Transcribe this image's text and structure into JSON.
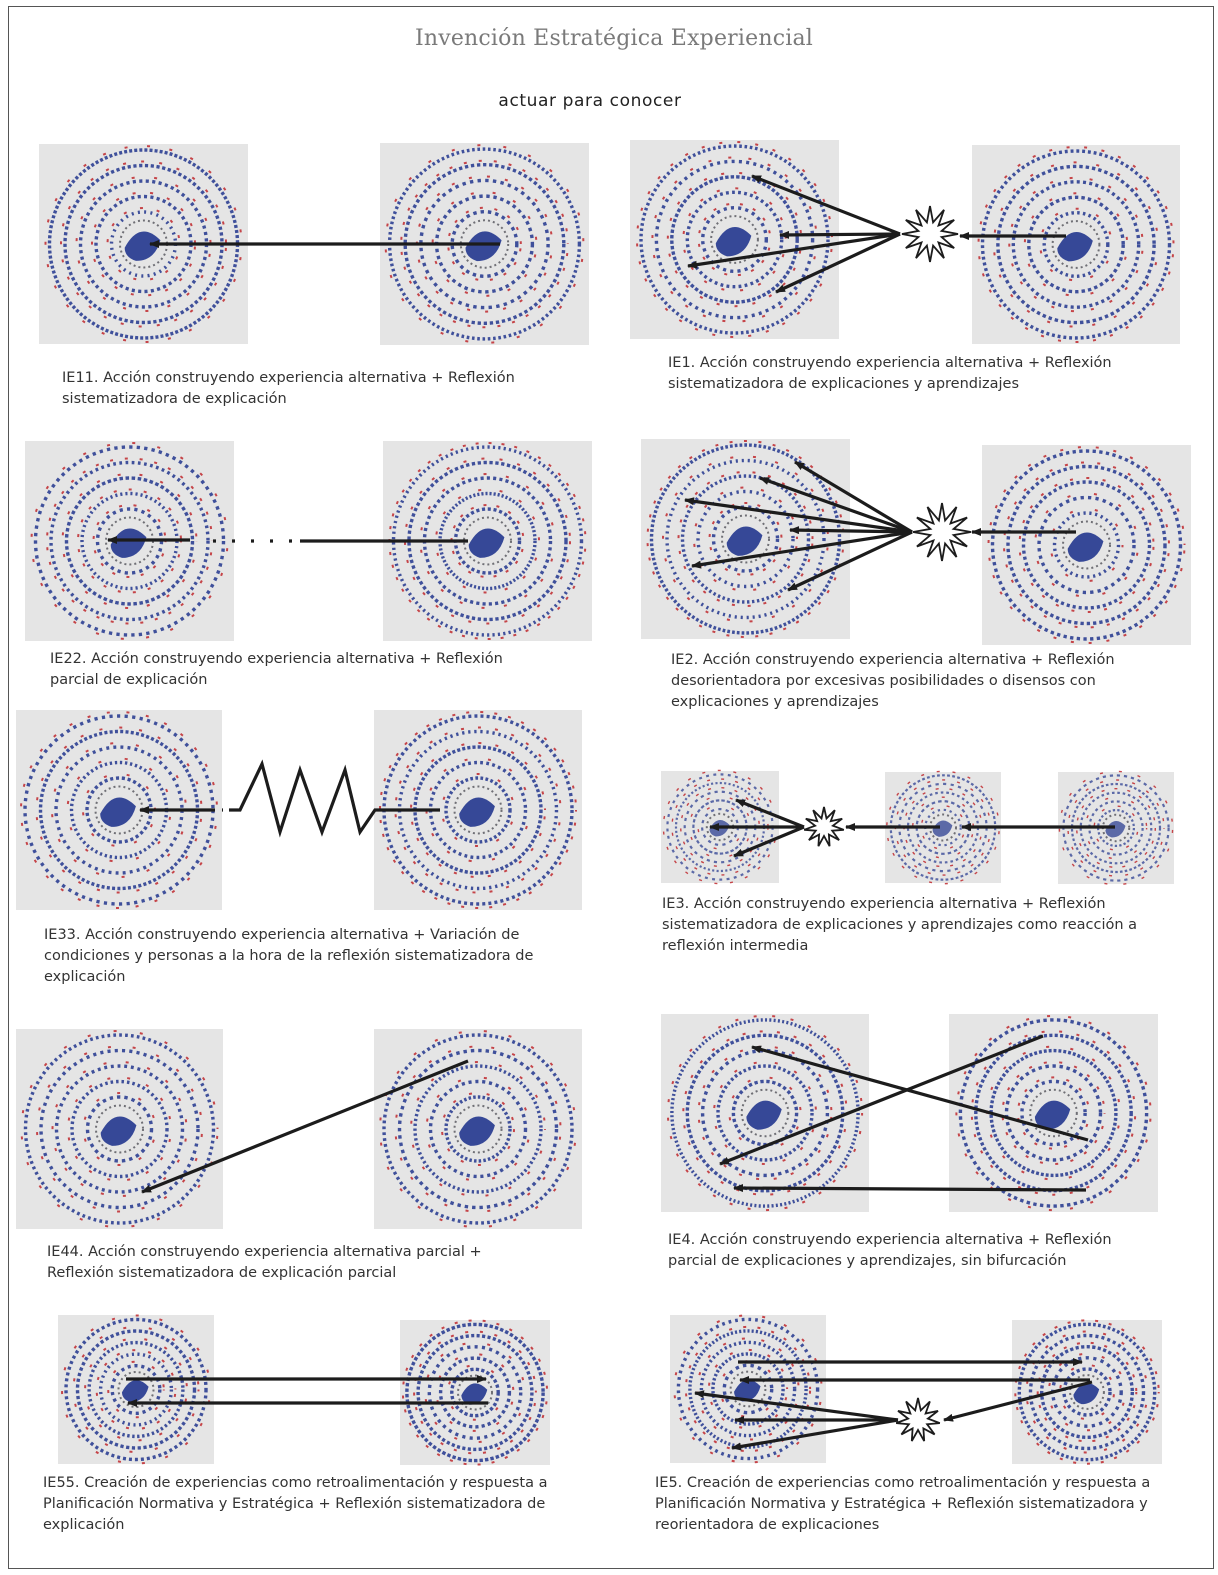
{
  "title": "Invención Estratégica Experiencial",
  "subtitle": "actuar para conocer",
  "colors": {
    "panel_bg": "#e5e5e5",
    "dot_blue": "#2c3f92",
    "dot_red": "#c0282d",
    "arrow": "#1c1c1c"
  },
  "diagrams": [
    {
      "id": "IE11",
      "caption": "IE11. Acción construyendo experiencia alternativa + Reflexión sistematizadora de explicación"
    },
    {
      "id": "IE1",
      "caption": "IE1. Acción construyendo experiencia alternativa + Reflexión sistematizadora de explicaciones y aprendizajes"
    },
    {
      "id": "IE22",
      "caption": "IE22. Acción construyendo experiencia alternativa + Reflexión parcial de explicación"
    },
    {
      "id": "IE2",
      "caption": "IE2. Acción construyendo experiencia alternativa + Reflexión desorientadora por excesivas posibilidades o disensos con explicaciones y aprendizajes"
    },
    {
      "id": "IE33",
      "caption": "IE33. Acción construyendo experiencia alternativa + Variación de condiciones y personas a la hora de la reflexión sistematizadora de explicación"
    },
    {
      "id": "IE3",
      "caption": "IE3. Acción construyendo experiencia alternativa + Reflexión sistematizadora de explicaciones y aprendizajes como reacción a reflexión intermedia"
    },
    {
      "id": "IE44",
      "caption": "IE44. Acción construyendo experiencia alternativa parcial + Reflexión sistematizadora de explicación parcial"
    },
    {
      "id": "IE4",
      "caption": "IE4. Acción construyendo experiencia alternativa + Reflexión parcial de explicaciones y aprendizajes, sin bifurcación"
    },
    {
      "id": "IE55",
      "caption": "IE55. Creación de experiencias como retroalimentación y respuesta a Planificación Normativa y Estratégica + Reflexión sistematizadora de explicación"
    },
    {
      "id": "IE5",
      "caption": "IE5. Creación de experiencias como retroalimentación y respuesta a Planificación Normativa y Estratégica + Reflexión sistematizadora y reorientadora de explicaciones"
    }
  ]
}
